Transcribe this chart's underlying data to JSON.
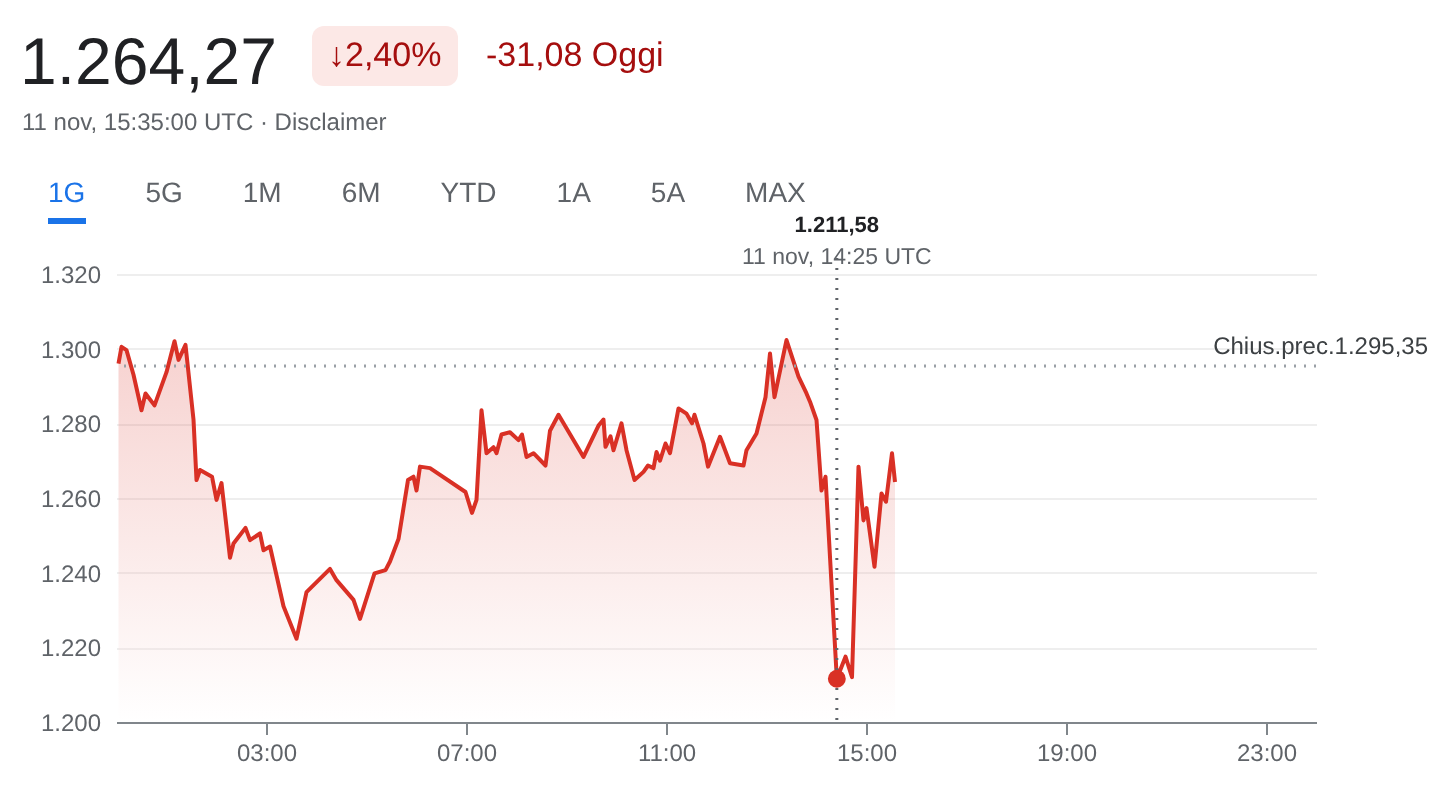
{
  "chart_data": {
    "type": "area",
    "title": "1.264,27",
    "subtitle": "11 nov, 15:35:00 UTC · Disclaimer",
    "annotations": [
      "↓2,40%",
      "-31,08 Oggi",
      "1G",
      "5G",
      "1M",
      "6M",
      "YTD",
      "1A",
      "5A",
      "MAX",
      "1.211,58",
      "11 nov, 14:25 UTC"
    ],
    "series": [
      {
        "color": "#d93025",
        "x": [
          0.05,
          0.11,
          0.21,
          0.35,
          0.51,
          0.59,
          0.77,
          1.01,
          1.17,
          1.25,
          1.39,
          1.55,
          1.61,
          1.68,
          1.92,
          2.01,
          2.11,
          2.28,
          2.35,
          2.59,
          2.68,
          2.88,
          2.95,
          3.08,
          3.35,
          3.61,
          3.81,
          4.28,
          4.41,
          4.75,
          4.88,
          5.17,
          5.39,
          5.48,
          5.65,
          5.84,
          5.95,
          6.01,
          6.08,
          6.28,
          6.99,
          7.12,
          7.21,
          7.31,
          7.41,
          7.55,
          7.61,
          7.71,
          7.88,
          8.05,
          8.12,
          8.21,
          8.35,
          8.59,
          8.68,
          8.85,
          9.35,
          9.65,
          9.75,
          9.79,
          9.89,
          9.95,
          10.11,
          10.21,
          10.37,
          10.55,
          10.64,
          10.75,
          10.81,
          10.88,
          10.99,
          11.08,
          11.25,
          11.41,
          11.52,
          11.57,
          11.75,
          11.84,
          12.08,
          12.28,
          12.55,
          12.61,
          12.81,
          12.99,
          13.08,
          13.17,
          13.41,
          13.65,
          13.81,
          13.88,
          14.01,
          14.11,
          14.19,
          14.4167,
          14.59,
          14.72,
          14.85,
          14.95,
          15.01,
          15.17,
          15.31,
          15.4,
          15.52,
          15.58
        ],
        "values": [
          1296,
          1300.5,
          1299.6,
          1293,
          1283.5,
          1288,
          1284.8,
          1293.7,
          1302,
          1297,
          1301,
          1281,
          1264.8,
          1267.5,
          1265.7,
          1259.5,
          1264,
          1244,
          1247.8,
          1252,
          1248.7,
          1250.5,
          1246,
          1247,
          1231,
          1222.3,
          1234.8,
          1241,
          1238,
          1232.7,
          1227.6,
          1239.8,
          1240.7,
          1243,
          1249,
          1264.8,
          1265.7,
          1262,
          1268.4,
          1268,
          1261.6,
          1256,
          1259.5,
          1283.5,
          1272,
          1273.6,
          1272,
          1277,
          1277.6,
          1275.5,
          1277,
          1271,
          1272,
          1268.7,
          1278,
          1282.3,
          1271,
          1279.4,
          1281,
          1273.7,
          1276.5,
          1272.8,
          1280,
          1272.8,
          1264.8,
          1267,
          1268.7,
          1268,
          1272.3,
          1270,
          1274.6,
          1272,
          1284,
          1282.6,
          1280,
          1282.3,
          1274.6,
          1268.4,
          1276.4,
          1269.3,
          1268.7,
          1272.8,
          1277.3,
          1287,
          1298.7,
          1287,
          1302.3,
          1292.5,
          1288,
          1285.8,
          1280.9,
          1262,
          1265.7,
          1211.58,
          1217.5,
          1212,
          1268.4,
          1254,
          1257.3,
          1241.6,
          1261.2,
          1259,
          1272,
          1264.27
        ]
      }
    ],
    "xlim": [
      0,
      24
    ],
    "xticks": [
      {
        "value": 3,
        "label": "03:00"
      },
      {
        "value": 7,
        "label": "07:00"
      },
      {
        "value": 11,
        "label": "11:00"
      },
      {
        "value": 15,
        "label": "15:00"
      },
      {
        "value": 19,
        "label": "19:00"
      },
      {
        "value": 23,
        "label": "23:00"
      }
    ],
    "ylim": [
      1200,
      1320
    ],
    "yticks": [
      {
        "value": 1200,
        "label": "1.200"
      },
      {
        "value": 1220,
        "label": "1.220"
      },
      {
        "value": 1240,
        "label": "1.240"
      },
      {
        "value": 1260,
        "label": "1.260"
      },
      {
        "value": 1280,
        "label": "1.280"
      },
      {
        "value": 1300,
        "label": "1.300"
      },
      {
        "value": 1320,
        "label": "1.320"
      }
    ],
    "ref_lines": [
      {
        "axis": "y",
        "value": 1295.35,
        "label": "Chius.prec.1.295,35",
        "color": "#9aa0a6",
        "line_style": "dotted"
      },
      {
        "axis": "x",
        "value": 14.4167,
        "color": "#5f6368",
        "line_style": "dotted"
      }
    ],
    "grid": "y"
  }
}
